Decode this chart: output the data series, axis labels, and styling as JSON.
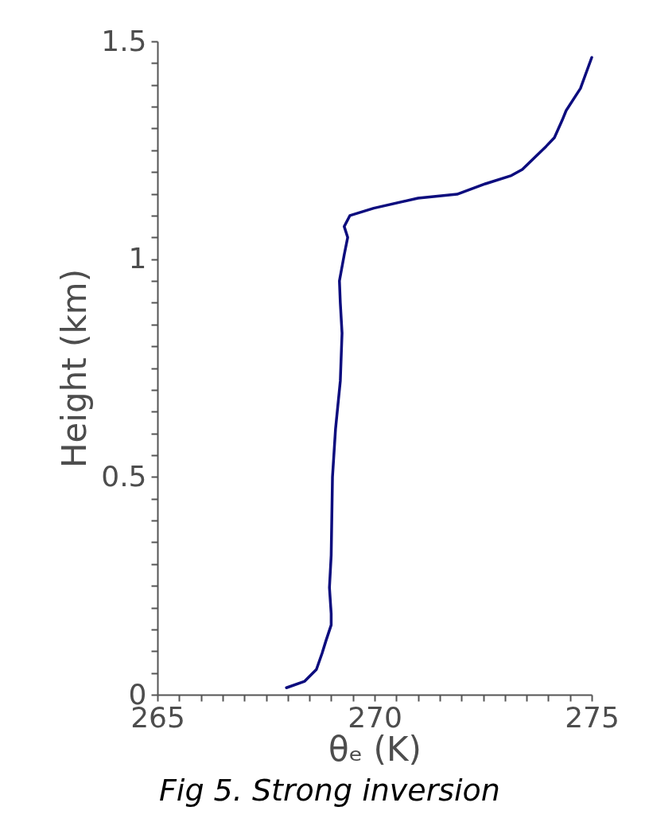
{
  "chart_data": {
    "type": "line",
    "xlabel": "θₑ (K)",
    "ylabel": "Height (km)",
    "annotations": [
      "Fig 5. Strong inversion"
    ],
    "xlim": [
      265,
      275
    ],
    "ylim": [
      0,
      1.5
    ],
    "xticks": [
      265,
      {
        "value": 265.5,
        "label": null
      },
      {
        "value": 266,
        "label": null
      },
      {
        "value": 266.5,
        "label": null
      },
      {
        "value": 267,
        "label": null
      },
      {
        "value": 267.5,
        "label": null
      },
      {
        "value": 268,
        "label": null
      },
      {
        "value": 268.5,
        "label": null
      },
      {
        "value": 269,
        "label": null
      },
      {
        "value": 269.5,
        "label": null
      },
      270,
      {
        "value": 270.5,
        "label": null
      },
      {
        "value": 271,
        "label": null
      },
      {
        "value": 271.5,
        "label": null
      },
      {
        "value": 272,
        "label": null
      },
      {
        "value": 272.5,
        "label": null
      },
      {
        "value": 273,
        "label": null
      },
      {
        "value": 273.5,
        "label": null
      },
      {
        "value": 274,
        "label": null
      },
      {
        "value": 274.5,
        "label": null
      },
      275
    ],
    "yticks": [
      0,
      {
        "value": 0.05,
        "label": null
      },
      {
        "value": 0.1,
        "label": null
      },
      {
        "value": 0.15,
        "label": null
      },
      {
        "value": 0.2,
        "label": null
      },
      {
        "value": 0.25,
        "label": null
      },
      {
        "value": 0.3,
        "label": null
      },
      {
        "value": 0.35,
        "label": null
      },
      {
        "value": 0.4,
        "label": null
      },
      {
        "value": 0.45,
        "label": null
      },
      {
        "value": 0.5,
        "label": "0.5"
      },
      {
        "value": 0.55,
        "label": null
      },
      {
        "value": 0.6,
        "label": null
      },
      {
        "value": 0.65,
        "label": null
      },
      {
        "value": 0.7,
        "label": null
      },
      {
        "value": 0.75,
        "label": null
      },
      {
        "value": 0.8,
        "label": null
      },
      {
        "value": 0.85,
        "label": null
      },
      {
        "value": 0.9,
        "label": null
      },
      {
        "value": 0.95,
        "label": null
      },
      1,
      {
        "value": 1.05,
        "label": null
      },
      {
        "value": 1.1,
        "label": null
      },
      {
        "value": 1.15,
        "label": null
      },
      {
        "value": 1.2,
        "label": null
      },
      {
        "value": 1.25,
        "label": null
      },
      {
        "value": 1.3,
        "label": null
      },
      {
        "value": 1.35,
        "label": null
      },
      {
        "value": 1.4,
        "label": null
      },
      {
        "value": 1.45,
        "label": null
      },
      1.5
    ],
    "grid": false,
    "line_style": "solid",
    "series": [
      {
        "color": "#0c0c7e",
        "x": [
          267.97,
          268.39,
          268.66,
          268.79,
          268.88,
          269.0,
          269.0,
          268.96,
          269.0,
          269.03,
          269.1,
          269.21,
          269.25,
          269.21,
          269.19,
          269.3,
          269.38,
          269.3,
          269.43,
          269.98,
          271.0,
          271.9,
          272.55,
          273.15,
          273.4,
          273.95,
          274.14,
          274.32,
          274.41,
          274.74,
          275.0
        ],
        "values": [
          0.016,
          0.031,
          0.058,
          0.095,
          0.124,
          0.16,
          0.186,
          0.246,
          0.32,
          0.5,
          0.61,
          0.72,
          0.83,
          0.9,
          0.95,
          1.01,
          1.05,
          1.075,
          1.1,
          1.117,
          1.14,
          1.149,
          1.173,
          1.192,
          1.206,
          1.259,
          1.279,
          1.319,
          1.341,
          1.392,
          1.463
        ]
      }
    ]
  }
}
